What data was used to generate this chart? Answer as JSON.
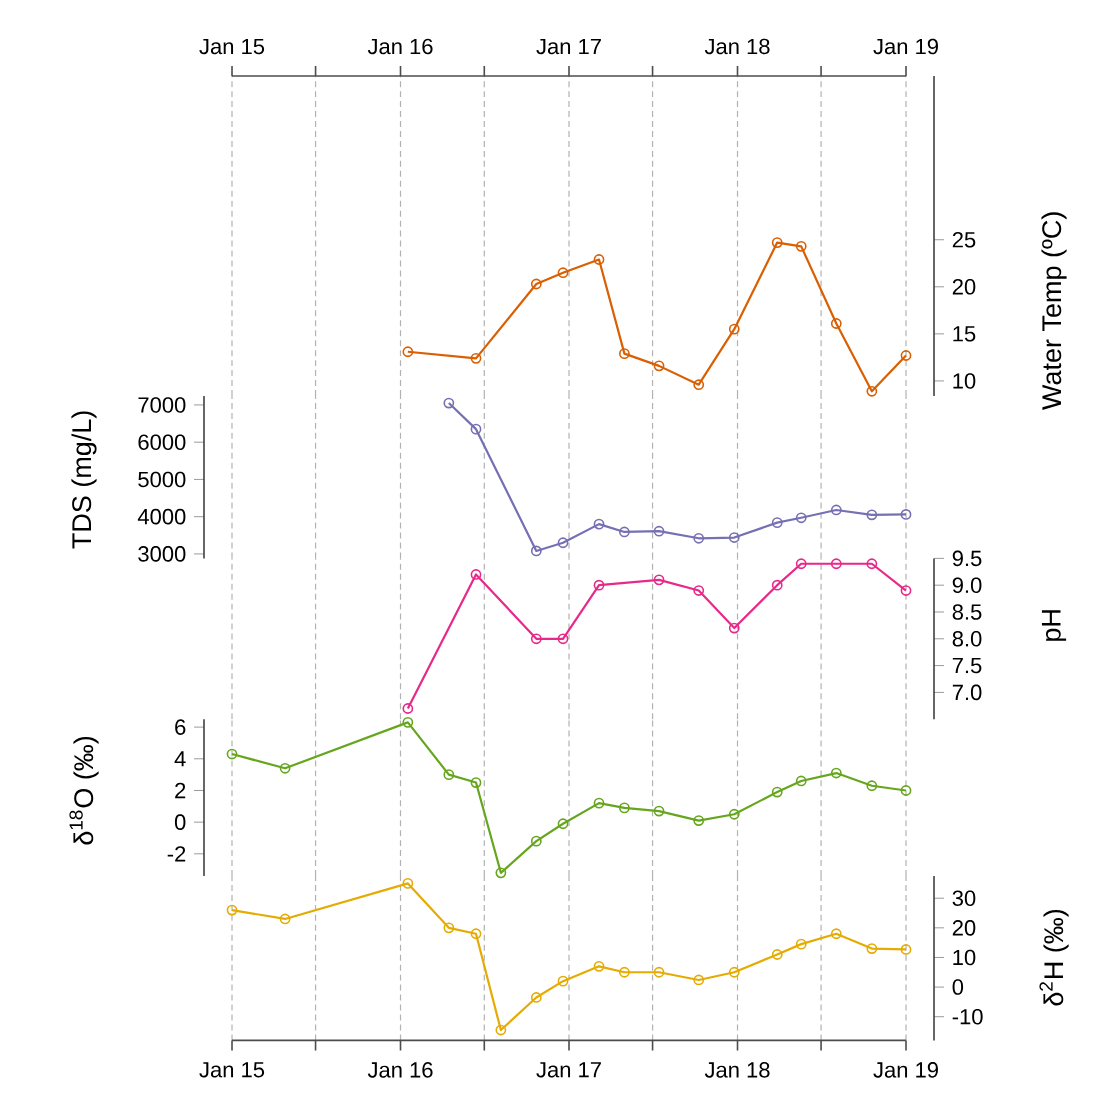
{
  "chart_data": [
    {
      "type": "line",
      "ylabel": "Water Temp (ºC)",
      "marker": "circle",
      "line_style": "solid",
      "grid": "x",
      "tick_labels": "y",
      "x": [
        "2016-01-17",
        "2016-06-13",
        "2016-10-22",
        "2016-12-19",
        "2017-03-07",
        "2017-05-01",
        "2017-07-15",
        "2017-10-09",
        "2017-12-25",
        "2018-03-28",
        "2018-05-19",
        "2018-08-03",
        "2018-10-19",
        "2019-01-01"
      ],
      "values": [
        13.1,
        12.4,
        20.3,
        21.5,
        22.9,
        12.9,
        11.6,
        9.6,
        15.5,
        24.7,
        24.3,
        16.1,
        8.9,
        12.7
      ],
      "color": "#d95f02",
      "xlim": [
        "2015-01",
        "2019-01"
      ],
      "ylim": [
        8.4,
        42.4
      ],
      "yticks": [
        10,
        15,
        20,
        25
      ],
      "xticks": [
        {
          "value": "2015-01",
          "label": null
        },
        {
          "value": "2015-07",
          "label": null
        },
        {
          "value": "2016-01",
          "label": null
        },
        {
          "value": "2016-07",
          "label": null
        },
        {
          "value": "2017-01",
          "label": null
        },
        {
          "value": "2017-07",
          "label": null
        },
        {
          "value": "2018-01",
          "label": null
        },
        {
          "value": "2018-07",
          "label": null
        },
        {
          "value": "2019-01",
          "label": null
        }
      ],
      "x2lim": [
        "2015-01",
        "2019-01"
      ],
      "x2ticks": [
        {
          "value": "2015-01",
          "label": "Jan 15"
        },
        {
          "value": "2015-07",
          "label": null
        },
        {
          "value": "2016-01",
          "label": "Jan 16"
        },
        {
          "value": "2016-07",
          "label": null
        },
        {
          "value": "2017-01",
          "label": "Jan 17"
        },
        {
          "value": "2017-07",
          "label": null
        },
        {
          "value": "2018-01",
          "label": "Jan 18"
        },
        {
          "value": "2018-07",
          "label": null
        },
        {
          "value": "2019-01",
          "label": "Jan 19"
        }
      ]
    },
    {
      "type": "line",
      "ylabel": "TDS (mg/L)",
      "marker": "circle",
      "line_style": "solid",
      "grid": "x",
      "tick_labels": "y",
      "x": [
        "2016-04-15",
        "2016-06-13",
        "2016-10-22",
        "2016-12-19",
        "2017-03-07",
        "2017-05-01",
        "2017-07-15",
        "2017-10-09",
        "2017-12-25",
        "2018-03-28",
        "2018-05-19",
        "2018-08-03",
        "2018-10-19",
        "2019-01-01"
      ],
      "values": [
        7050,
        6350,
        3080,
        3300,
        3800,
        3590,
        3610,
        3420,
        3440,
        3840,
        3970,
        4180,
        4050,
        4060
      ],
      "color": "#7570b3",
      "xlim": [
        "2015-01",
        "2019-01"
      ],
      "ylim": [
        2880,
        7240
      ],
      "yticks": [
        3000,
        4000,
        5000,
        6000,
        7000
      ],
      "xticks": [
        {
          "value": "2015-01",
          "label": null
        },
        {
          "value": "2015-07",
          "label": null
        },
        {
          "value": "2016-01",
          "label": null
        },
        {
          "value": "2016-07",
          "label": null
        },
        {
          "value": "2017-01",
          "label": null
        },
        {
          "value": "2017-07",
          "label": null
        },
        {
          "value": "2018-01",
          "label": null
        },
        {
          "value": "2018-07",
          "label": null
        },
        {
          "value": "2019-01",
          "label": null
        }
      ]
    },
    {
      "type": "line",
      "ylabel": "pH",
      "marker": "circle",
      "line_style": "solid",
      "grid": "x",
      "tick_labels": "y",
      "x": [
        "2016-01-17",
        "2016-06-13",
        "2016-10-22",
        "2016-12-19",
        "2017-03-07",
        "2017-07-15",
        "2017-10-09",
        "2017-12-25",
        "2018-03-28",
        "2018-05-19",
        "2018-08-03",
        "2018-10-19",
        "2019-01-01"
      ],
      "values": [
        6.7,
        9.2,
        8.0,
        8.0,
        9.0,
        9.1,
        8.9,
        8.2,
        9.0,
        9.4,
        9.4,
        9.4,
        8.9
      ],
      "color": "#e7298a",
      "xlim": [
        "2015-01",
        "2019-01"
      ],
      "ylim": [
        6.5,
        9.5
      ],
      "yticks": [
        {
          "value": 7,
          "label": "7.0"
        },
        {
          "value": 7.5,
          "label": "7.5"
        },
        {
          "value": 8,
          "label": "8.0"
        },
        {
          "value": 8.5,
          "label": "8.5"
        },
        {
          "value": 9,
          "label": "9.0"
        },
        {
          "value": 9.5,
          "label": "9.5"
        }
      ],
      "xticks": [
        {
          "value": "2015-01",
          "label": null
        },
        {
          "value": "2015-07",
          "label": null
        },
        {
          "value": "2016-01",
          "label": null
        },
        {
          "value": "2016-07",
          "label": null
        },
        {
          "value": "2017-01",
          "label": null
        },
        {
          "value": "2017-07",
          "label": null
        },
        {
          "value": "2018-01",
          "label": null
        },
        {
          "value": "2018-07",
          "label": null
        },
        {
          "value": "2019-01",
          "label": null
        }
      ]
    },
    {
      "type": "line",
      "ylabel": "δ$^{18}$O (‰)",
      "marker": "circle",
      "line_style": "solid",
      "grid": "x",
      "tick_labels": "y",
      "x": [
        "2015-01-01",
        "2015-04-26",
        "2016-01-17",
        "2016-04-15",
        "2016-06-13",
        "2016-08-06",
        "2016-10-22",
        "2016-12-19",
        "2017-03-07",
        "2017-05-01",
        "2017-07-15",
        "2017-10-09",
        "2017-12-25",
        "2018-03-28",
        "2018-05-19",
        "2018-08-03",
        "2018-10-19",
        "2019-01-01"
      ],
      "values": [
        4.3,
        3.4,
        6.3,
        3.0,
        2.5,
        -3.2,
        -1.2,
        -0.1,
        1.2,
        0.9,
        0.7,
        0.1,
        0.5,
        1.9,
        2.6,
        3.1,
        2.3,
        2.0
      ],
      "color": "#66a61e",
      "xlim": [
        "2015-01",
        "2019-01"
      ],
      "ylim": [
        -3.4,
        6.5
      ],
      "yticks": [
        -2,
        0,
        2,
        4,
        6
      ],
      "xticks": [
        {
          "value": "2015-01",
          "label": null
        },
        {
          "value": "2015-07",
          "label": null
        },
        {
          "value": "2016-01",
          "label": null
        },
        {
          "value": "2016-07",
          "label": null
        },
        {
          "value": "2017-01",
          "label": null
        },
        {
          "value": "2017-07",
          "label": null
        },
        {
          "value": "2018-01",
          "label": null
        },
        {
          "value": "2018-07",
          "label": null
        },
        {
          "value": "2019-01",
          "label": null
        }
      ]
    },
    {
      "type": "line",
      "ylabel": "δ$^{2}$H (‰)",
      "marker": "circle",
      "line_style": "solid",
      "grid": "x",
      "x": [
        "2015-01-01",
        "2015-04-26",
        "2016-01-17",
        "2016-04-15",
        "2016-06-13",
        "2016-08-06",
        "2016-10-22",
        "2016-12-19",
        "2017-03-07",
        "2017-05-01",
        "2017-07-15",
        "2017-10-09",
        "2017-12-25",
        "2018-03-28",
        "2018-05-19",
        "2018-08-03",
        "2018-10-19",
        "2019-01-01"
      ],
      "values": [
        26,
        23,
        35,
        20,
        18,
        -14.5,
        -3.5,
        2,
        7,
        5,
        5,
        2.4,
        5,
        11,
        14.5,
        18,
        13,
        12.7
      ],
      "color": "#e6ab02",
      "xlim": [
        "2015-01",
        "2019-01"
      ],
      "ylim": [
        -18,
        37.5
      ],
      "yticks": [
        -10,
        0,
        10,
        20,
        30
      ],
      "xticks": [
        {
          "value": "2015-01",
          "label": "Jan 15"
        },
        {
          "value": "2015-07",
          "label": null
        },
        {
          "value": "2016-01",
          "label": "Jan 16"
        },
        {
          "value": "2016-07",
          "label": null
        },
        {
          "value": "2017-01",
          "label": "Jan 17"
        },
        {
          "value": "2017-07",
          "label": null
        },
        {
          "value": "2018-01",
          "label": "Jan 18"
        },
        {
          "value": "2018-07",
          "label": null
        },
        {
          "value": "2019-01",
          "label": "Jan 19"
        }
      ]
    }
  ]
}
